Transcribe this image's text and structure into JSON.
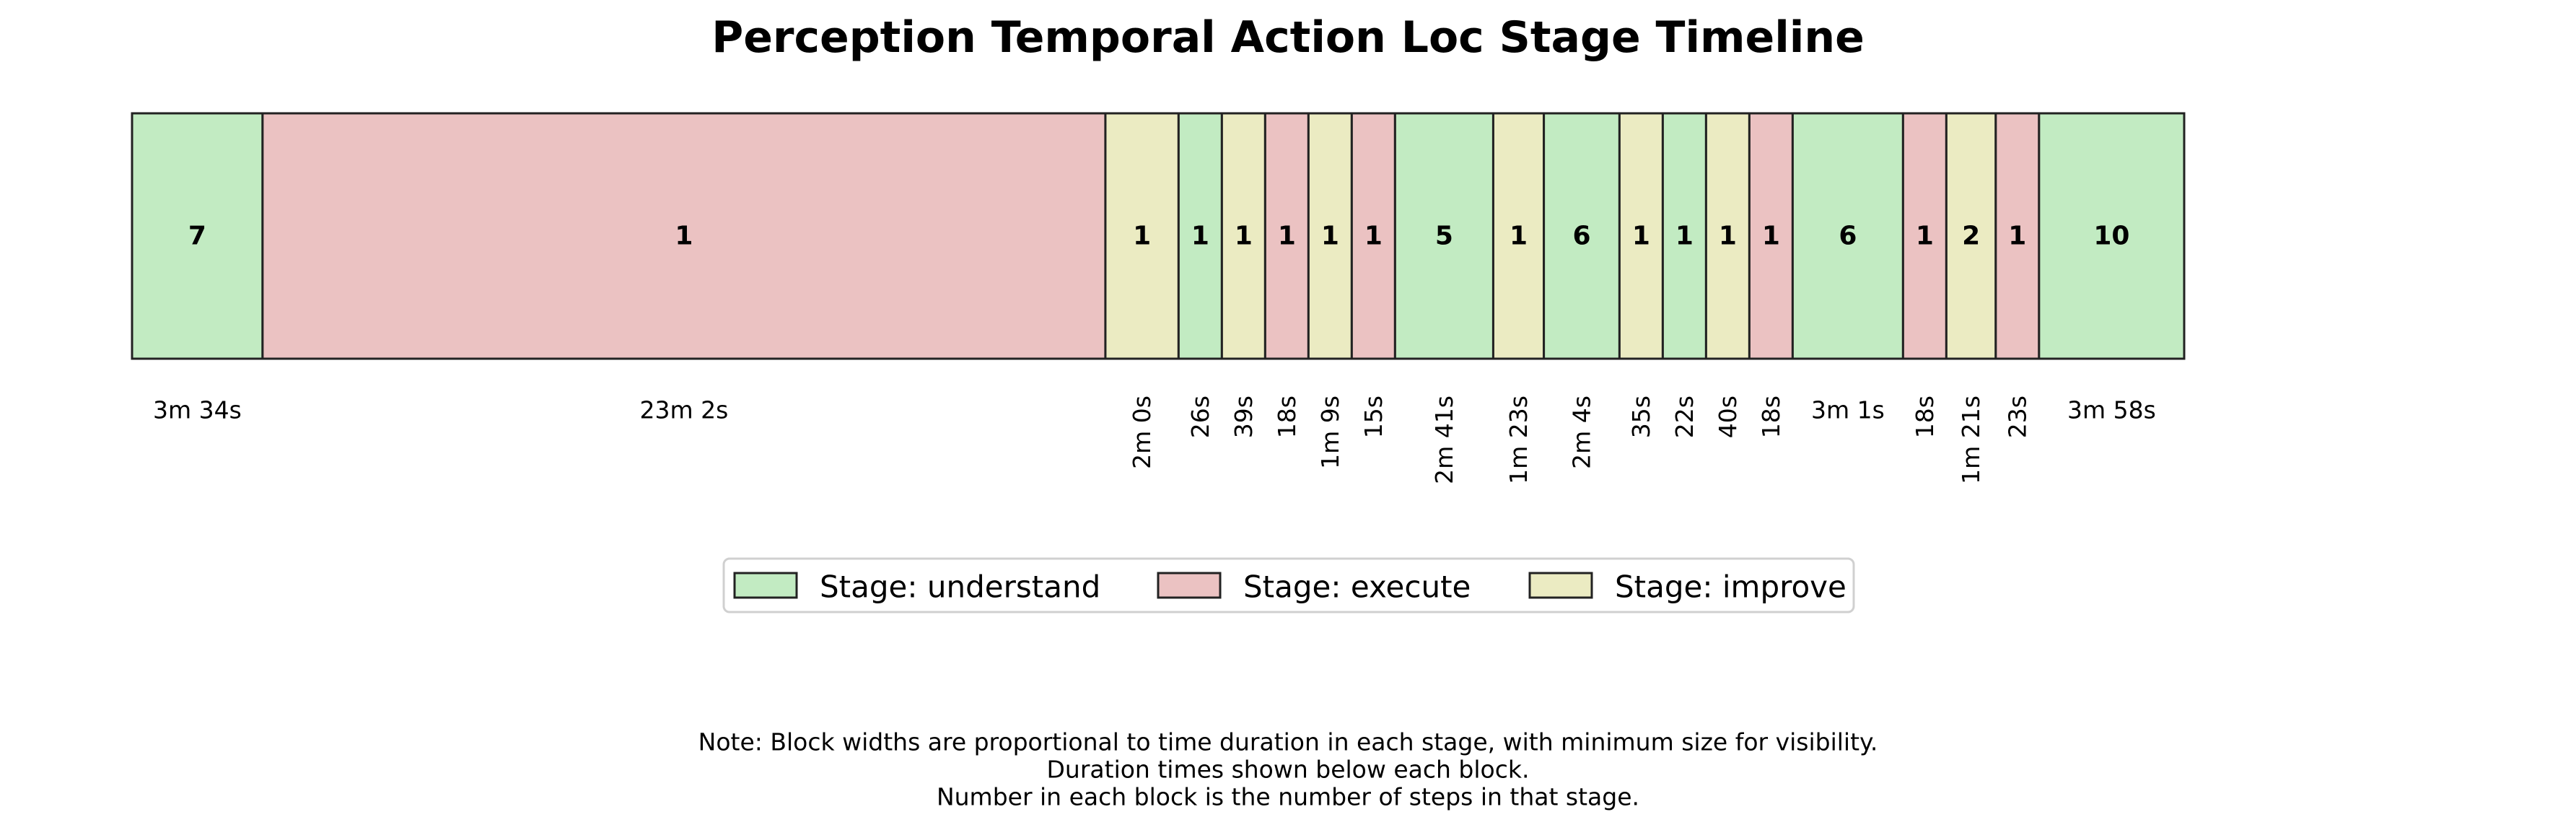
{
  "chart_data": {
    "type": "timeline",
    "title": "Perception Temporal Action Loc Stage Timeline",
    "stage_colors": {
      "understand": "#c2ebc2",
      "execute": "#ebc2c2",
      "improve": "#ebebc2"
    },
    "stages": [
      {
        "stage": "understand",
        "steps": 7,
        "duration": "3m 34s"
      },
      {
        "stage": "execute",
        "steps": 1,
        "duration": "23m 2s"
      },
      {
        "stage": "improve",
        "steps": 1,
        "duration": "2m 0s"
      },
      {
        "stage": "understand",
        "steps": 1,
        "duration": "26s"
      },
      {
        "stage": "improve",
        "steps": 1,
        "duration": "39s"
      },
      {
        "stage": "execute",
        "steps": 1,
        "duration": "18s"
      },
      {
        "stage": "improve",
        "steps": 1,
        "duration": "1m 9s"
      },
      {
        "stage": "execute",
        "steps": 1,
        "duration": "15s"
      },
      {
        "stage": "understand",
        "steps": 5,
        "duration": "2m 41s"
      },
      {
        "stage": "improve",
        "steps": 1,
        "duration": "1m 23s"
      },
      {
        "stage": "understand",
        "steps": 6,
        "duration": "2m 4s"
      },
      {
        "stage": "improve",
        "steps": 1,
        "duration": "35s"
      },
      {
        "stage": "understand",
        "steps": 1,
        "duration": "22s"
      },
      {
        "stage": "improve",
        "steps": 1,
        "duration": "40s"
      },
      {
        "stage": "execute",
        "steps": 1,
        "duration": "18s"
      },
      {
        "stage": "understand",
        "steps": 6,
        "duration": "3m 1s"
      },
      {
        "stage": "execute",
        "steps": 1,
        "duration": "18s"
      },
      {
        "stage": "improve",
        "steps": 2,
        "duration": "1m 21s"
      },
      {
        "stage": "execute",
        "steps": 1,
        "duration": "23s"
      },
      {
        "stage": "understand",
        "steps": 10,
        "duration": "3m 58s"
      }
    ],
    "legend": [
      {
        "stage": "understand",
        "label": "Stage: understand"
      },
      {
        "stage": "execute",
        "label": "Stage: execute"
      },
      {
        "stage": "improve",
        "label": "Stage: improve"
      }
    ],
    "legend_position": "below chart, centered",
    "note_lines": [
      "Note: Block widths are proportional to time duration in each stage, with minimum size for visibility.",
      "Duration times shown below each block.",
      "Number in each block is the number of steps in that stage."
    ]
  }
}
